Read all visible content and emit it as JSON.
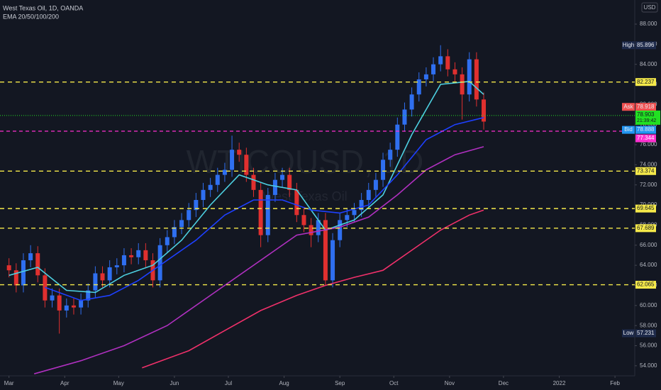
{
  "chart_data": {
    "type": "candlestick",
    "title": "West Texas Oil, 1D, OANDA",
    "indicator": "EMA 20/50/100/200",
    "watermark": "WTICOUSD, 1D",
    "watermark_sub": "West Texas Oil",
    "currency": "USD",
    "up_color": "#2f6ff0",
    "down_color": "#e0302f",
    "xlim": [
      -5,
      348
    ],
    "xticks": [
      {
        "value": 0,
        "label": "Mar"
      },
      {
        "value": 31,
        "label": "Apr"
      },
      {
        "value": 61,
        "label": "May"
      },
      {
        "value": 92,
        "label": "Jun"
      },
      {
        "value": 122,
        "label": "Jul"
      },
      {
        "value": 153,
        "label": "Aug"
      },
      {
        "value": 184,
        "label": "Sep"
      },
      {
        "value": 214,
        "label": "Oct"
      },
      {
        "value": 245,
        "label": "Nov"
      },
      {
        "value": 275,
        "label": "Dec"
      },
      {
        "value": 306,
        "label": "2022"
      },
      {
        "value": 337,
        "label": "Feb"
      }
    ],
    "ylim": [
      53,
      90.4
    ],
    "yticks": [
      {
        "value": 88,
        "label": "88.000"
      },
      {
        "value": 86,
        "label": "86.000"
      },
      {
        "value": 84,
        "label": "84.000"
      },
      {
        "value": 82,
        "label": "82.000"
      },
      {
        "value": 80,
        "label": "80.000"
      },
      {
        "value": 78,
        "label": "78.000"
      },
      {
        "value": 76,
        "label": "76.000"
      },
      {
        "value": 74,
        "label": "74.000"
      },
      {
        "value": 72,
        "label": "72.000"
      },
      {
        "value": 70,
        "label": "70.000"
      },
      {
        "value": 68,
        "label": "68.000"
      },
      {
        "value": 66,
        "label": "66.000"
      },
      {
        "value": 64,
        "label": "64.000"
      },
      {
        "value": 62,
        "label": "62.000"
      },
      {
        "value": 60,
        "label": "60.000"
      },
      {
        "value": 58,
        "label": "58.000"
      },
      {
        "value": 56,
        "label": "56.000"
      },
      {
        "value": 54,
        "label": "54.000"
      }
    ],
    "x": [
      0,
      4,
      8,
      12,
      16,
      20,
      24,
      28,
      32,
      36,
      40,
      44,
      48,
      52,
      56,
      60,
      64,
      68,
      72,
      76,
      80,
      84,
      88,
      92,
      96,
      100,
      104,
      108,
      112,
      116,
      120,
      124,
      128,
      132,
      136,
      140,
      144,
      148,
      152,
      156,
      160,
      164,
      168,
      172,
      176,
      180,
      184,
      188,
      192,
      196,
      200,
      204,
      208,
      212,
      216,
      220,
      224,
      228,
      232,
      236,
      240,
      244,
      248,
      252,
      256,
      260,
      264
    ],
    "open": [
      64.0,
      63.5,
      62.0,
      64.5,
      65.2,
      63.0,
      60.5,
      61.0,
      59.5,
      60.0,
      59.8,
      60.5,
      61.5,
      63.2,
      62.5,
      63.8,
      64.0,
      65.0,
      64.8,
      65.5,
      64.5,
      62.5,
      66.0,
      66.8,
      67.8,
      68.5,
      69.5,
      70.5,
      71.5,
      72.0,
      73.0,
      73.5,
      75.5,
      75.0,
      73.0,
      71.5,
      67.0,
      71.0,
      72.5,
      73.0,
      71.5,
      69.0,
      68.0,
      67.0,
      68.5,
      62.5,
      66.5,
      68.5,
      69.0,
      69.5,
      70.5,
      71.5,
      72.5,
      74.5,
      75.5,
      78.0,
      79.5,
      81.0,
      82.5,
      83.0,
      84.0,
      84.8,
      83.5,
      83.0,
      81.0,
      84.5,
      80.5
    ],
    "high": [
      64.7,
      64.2,
      65.2,
      66.0,
      65.9,
      63.7,
      61.7,
      61.7,
      60.7,
      60.7,
      61.2,
      62.2,
      63.9,
      63.9,
      64.5,
      64.7,
      65.7,
      65.7,
      66.2,
      66.2,
      65.2,
      66.7,
      67.5,
      68.5,
      69.2,
      70.2,
      71.2,
      72.2,
      72.7,
      73.7,
      74.2,
      76.9,
      76.2,
      75.7,
      73.7,
      72.2,
      71.7,
      73.2,
      73.7,
      73.7,
      72.2,
      69.7,
      68.7,
      69.2,
      69.2,
      67.2,
      69.2,
      69.7,
      70.2,
      71.2,
      72.2,
      73.2,
      75.2,
      76.2,
      78.7,
      80.2,
      81.7,
      83.2,
      83.7,
      84.7,
      85.9,
      85.5,
      84.2,
      83.7,
      85.2,
      85.2,
      81.2
    ],
    "low": [
      62.8,
      61.3,
      61.3,
      63.8,
      62.3,
      59.8,
      59.8,
      57.2,
      58.8,
      59.1,
      59.1,
      59.8,
      60.8,
      61.8,
      61.8,
      63.1,
      63.3,
      64.1,
      64.1,
      63.8,
      61.8,
      61.8,
      65.3,
      66.1,
      67.1,
      67.8,
      68.8,
      69.8,
      70.8,
      71.3,
      72.3,
      72.8,
      74.3,
      72.3,
      70.8,
      65.8,
      66.3,
      70.3,
      71.8,
      70.8,
      68.3,
      67.3,
      65.8,
      66.3,
      62.0,
      61.8,
      65.8,
      67.8,
      68.3,
      68.8,
      69.8,
      70.8,
      71.8,
      73.8,
      74.8,
      77.3,
      78.8,
      80.3,
      81.8,
      82.3,
      83.3,
      82.8,
      82.3,
      78.5,
      80.3,
      79.8,
      77.5
    ],
    "close": [
      63.5,
      62.0,
      64.5,
      65.2,
      63.0,
      60.5,
      61.0,
      59.5,
      60.0,
      59.8,
      60.5,
      61.5,
      63.2,
      62.5,
      63.8,
      64.0,
      65.0,
      64.8,
      65.5,
      64.5,
      62.5,
      66.0,
      66.8,
      67.8,
      68.5,
      69.5,
      70.5,
      71.5,
      72.0,
      73.0,
      73.5,
      75.5,
      75.0,
      73.0,
      71.5,
      67.0,
      71.0,
      72.5,
      73.0,
      71.5,
      69.0,
      68.0,
      67.0,
      68.5,
      62.5,
      66.5,
      68.5,
      69.0,
      69.5,
      70.5,
      71.5,
      72.5,
      74.5,
      75.5,
      78.0,
      79.5,
      81.0,
      82.5,
      83.0,
      84.0,
      84.8,
      83.5,
      83.0,
      81.0,
      84.5,
      80.5,
      78.3
    ],
    "series": [
      {
        "color": "#4dd0e1",
        "x": [
          0,
          16,
          32,
          48,
          64,
          80,
          96,
          112,
          128,
          144,
          160,
          176,
          192,
          208,
          224,
          240,
          256,
          264
        ],
        "values": [
          63.0,
          63.8,
          61.5,
          61.3,
          63.0,
          64.0,
          66.5,
          70.0,
          73.0,
          72.0,
          71.5,
          67.5,
          68.5,
          71.0,
          77.0,
          82.0,
          82.3,
          81.0
        ]
      },
      {
        "color": "#1e40ff",
        "x": [
          20,
          40,
          56,
          72,
          88,
          104,
          120,
          136,
          152,
          168,
          184,
          200,
          216,
          232,
          248,
          264
        ],
        "values": [
          61.8,
          60.5,
          61.0,
          62.5,
          64.5,
          66.5,
          69.0,
          70.5,
          70.5,
          69.5,
          69.2,
          70.0,
          73.0,
          76.5,
          78.0,
          78.7
        ]
      },
      {
        "color": "#b030c0",
        "x": [
          14,
          40,
          64,
          88,
          112,
          136,
          160,
          184,
          200,
          216,
          232,
          248,
          264
        ],
        "values": [
          53.2,
          54.5,
          56.0,
          58.0,
          61.0,
          64.0,
          67.0,
          67.8,
          68.8,
          71.0,
          73.5,
          75.0,
          75.8
        ]
      },
      {
        "color": "#f0306a",
        "x": [
          74,
          100,
          120,
          140,
          160,
          176,
          192,
          208,
          224,
          240,
          256,
          264
        ],
        "values": [
          53.8,
          55.5,
          57.5,
          59.5,
          61.0,
          62.0,
          62.8,
          63.5,
          65.5,
          67.5,
          69.0,
          69.5
        ]
      }
    ],
    "levels": [
      82.237,
      73.374,
      69.645,
      67.689,
      62.065
    ],
    "level_color": "#f5e94a",
    "pivot": 77.344,
    "pivot_color": "#ff2fd0",
    "last": 78.903,
    "last_time": "21:39:42",
    "last_color": "#22e022",
    "tags": [
      {
        "name": "High",
        "value": 85.896
      },
      {
        "name": "Ask",
        "value": 78.918,
        "color": "#f05050"
      },
      {
        "name": "Bid",
        "value": 78.888,
        "color": "#2196f3"
      },
      {
        "name": "Low",
        "value": 57.231
      }
    ]
  }
}
